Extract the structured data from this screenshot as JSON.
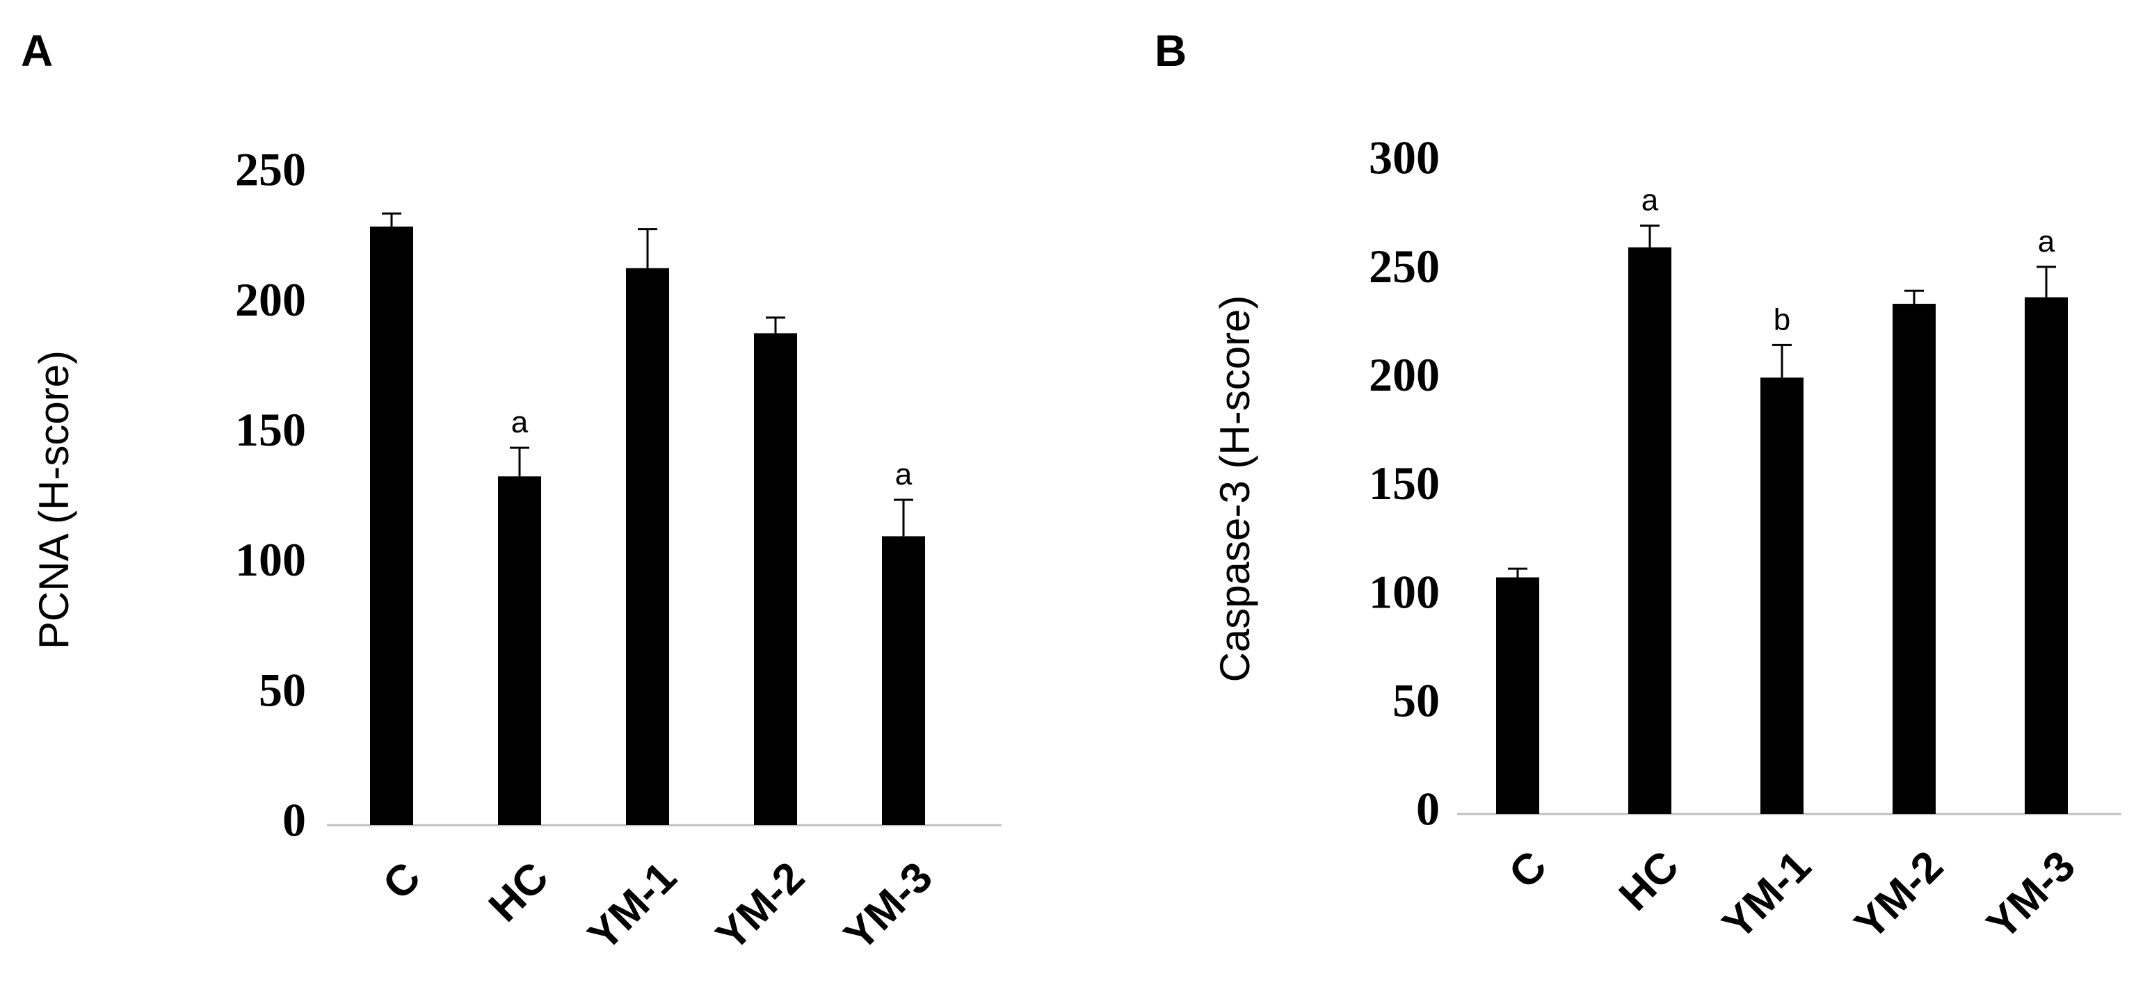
{
  "chart_data": [
    {
      "panel": "A",
      "type": "bar",
      "ylabel": "PCNA (H-score)",
      "categories": [
        "C",
        "HC",
        "YM-1",
        "YM-2",
        "YM-3"
      ],
      "values": [
        230,
        134,
        214,
        189,
        111
      ],
      "errors": [
        5,
        11,
        15,
        6,
        14
      ],
      "annotations": [
        "",
        "a",
        "",
        "",
        "a"
      ],
      "ylim": [
        0,
        250
      ],
      "yticks": [
        "0",
        "50",
        "100",
        "150",
        "200",
        "250"
      ],
      "grid": false,
      "legend": "none"
    },
    {
      "panel": "B",
      "type": "bar",
      "ylabel": "Caspase-3 (H-score)",
      "categories": [
        "C",
        "HC",
        "YM-1",
        "YM-2",
        "YM-3"
      ],
      "values": [
        109,
        261,
        201,
        235,
        238
      ],
      "errors": [
        4,
        10,
        15,
        6,
        14
      ],
      "annotations": [
        "",
        "a",
        "b",
        "",
        "a"
      ],
      "ylim": [
        0,
        300
      ],
      "yticks": [
        "0",
        "50",
        "100",
        "150",
        "200",
        "250",
        "300"
      ],
      "grid": false,
      "legend": "none"
    }
  ]
}
